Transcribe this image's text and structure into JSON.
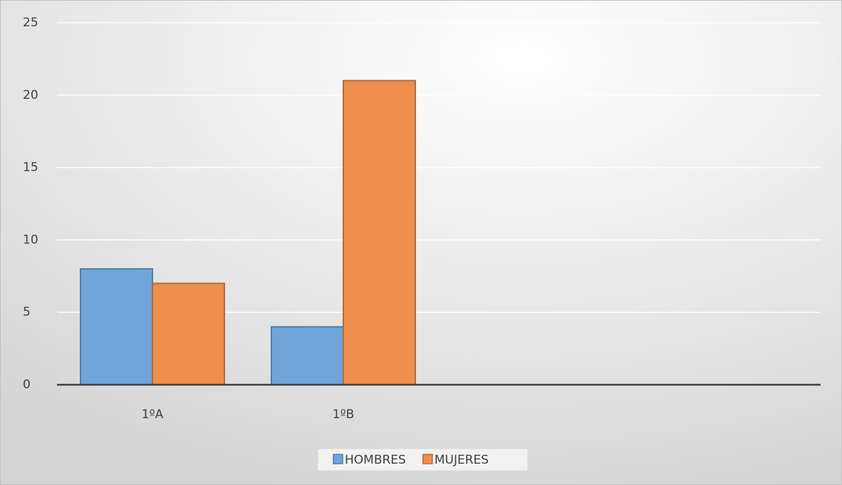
{
  "chart_data": {
    "type": "bar",
    "categories": [
      "1ºA",
      "1ºB",
      null,
      null
    ],
    "series": [
      {
        "name": "HOMBRES",
        "color": "#6fa5d9",
        "values": [
          8,
          4,
          null,
          null
        ]
      },
      {
        "name": "MUJERES",
        "color": "#ee8f4d",
        "values": [
          7,
          21,
          null,
          null
        ]
      }
    ],
    "ylim": [
      0,
      25
    ],
    "yticks": [
      0,
      5,
      10,
      15,
      20,
      25
    ],
    "grid": true,
    "legend": "bottom"
  }
}
